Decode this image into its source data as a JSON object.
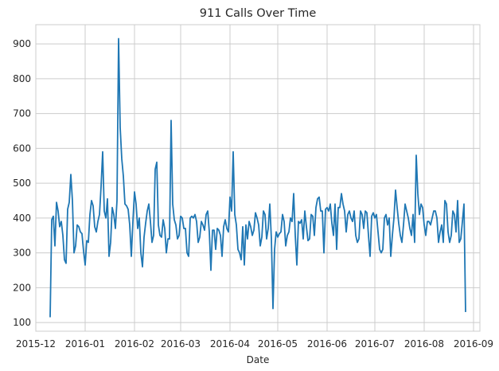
{
  "chart_data": {
    "type": "line",
    "title": "911 Calls Over Time",
    "xlabel": "Date",
    "ylabel": "",
    "xlim": [
      "2015-12-01",
      "2016-09-05"
    ],
    "ylim": [
      75,
      955
    ],
    "grid": true,
    "x_ticks": [
      "2015-12-01",
      "2016-01-01",
      "2016-02-01",
      "2016-03-01",
      "2016-04-01",
      "2016-05-01",
      "2016-06-01",
      "2016-07-01",
      "2016-08-01",
      "2016-09-01"
    ],
    "x_tick_labels": [
      "2015-12",
      "2016-01",
      "2016-02",
      "2016-03",
      "2016-04",
      "2016-05",
      "2016-06",
      "2016-07",
      "2016-08",
      "2016-09"
    ],
    "y_ticks": [
      100,
      200,
      300,
      400,
      500,
      600,
      700,
      800,
      900
    ],
    "y_tick_labels": [
      "100",
      "200",
      "300",
      "400",
      "500",
      "600",
      "700",
      "800",
      "900"
    ],
    "colors": {
      "line": "#1f77b4",
      "grid": "#cccccc",
      "spine": "#cccccc",
      "text": "#262626"
    },
    "series": [
      {
        "x_start": "2015-12-10",
        "x_step_days": 1,
        "values": [
          115,
          395,
          405,
          320,
          445,
          420,
          375,
          390,
          350,
          280,
          270,
          425,
          445,
          525,
          450,
          300,
          320,
          380,
          375,
          360,
          355,
          305,
          265,
          335,
          330,
          410,
          450,
          435,
          375,
          360,
          390,
          410,
          490,
          590,
          420,
          400,
          455,
          290,
          330,
          430,
          410,
          370,
          450,
          915,
          660,
          570,
          520,
          440,
          435,
          425,
          380,
          290,
          390,
          475,
          440,
          370,
          400,
          300,
          260,
          345,
          385,
          420,
          440,
          390,
          330,
          350,
          540,
          560,
          380,
          350,
          345,
          395,
          370,
          300,
          340,
          340,
          680,
          440,
          395,
          380,
          340,
          350,
          405,
          400,
          370,
          370,
          300,
          290,
          400,
          405,
          400,
          410,
          390,
          330,
          345,
          390,
          380,
          365,
          410,
          420,
          360,
          250,
          365,
          365,
          310,
          370,
          365,
          350,
          290,
          375,
          395,
          370,
          360,
          460,
          420,
          590,
          410,
          380,
          310,
          300,
          280,
          375,
          265,
          380,
          340,
          390,
          375,
          350,
          365,
          415,
          400,
          380,
          320,
          345,
          420,
          410,
          340,
          370,
          440,
          340,
          140,
          310,
          360,
          345,
          355,
          360,
          410,
          390,
          320,
          350,
          360,
          400,
          390,
          470,
          350,
          265,
          390,
          385,
          395,
          340,
          420,
          375,
          335,
          340,
          410,
          405,
          350,
          430,
          455,
          460,
          420,
          420,
          300,
          425,
          430,
          420,
          440,
          385,
          350,
          440,
          310,
          430,
          430,
          470,
          440,
          420,
          360,
          410,
          420,
          400,
          390,
          420,
          350,
          330,
          340,
          420,
          410,
          370,
          420,
          415,
          350,
          290,
          405,
          415,
          400,
          410,
          360,
          310,
          300,
          310,
          400,
          410,
          380,
          400,
          290,
          350,
          400,
          480,
          430,
          385,
          350,
          330,
          380,
          440,
          420,
          400,
          370,
          350,
          410,
          330,
          580,
          470,
          410,
          440,
          430,
          380,
          350,
          390,
          390,
          380,
          400,
          420,
          420,
          400,
          330,
          360,
          380,
          330,
          450,
          440,
          360,
          330,
          350,
          420,
          410,
          360,
          450,
          330,
          340,
          390,
          440,
          130
        ]
      }
    ]
  }
}
